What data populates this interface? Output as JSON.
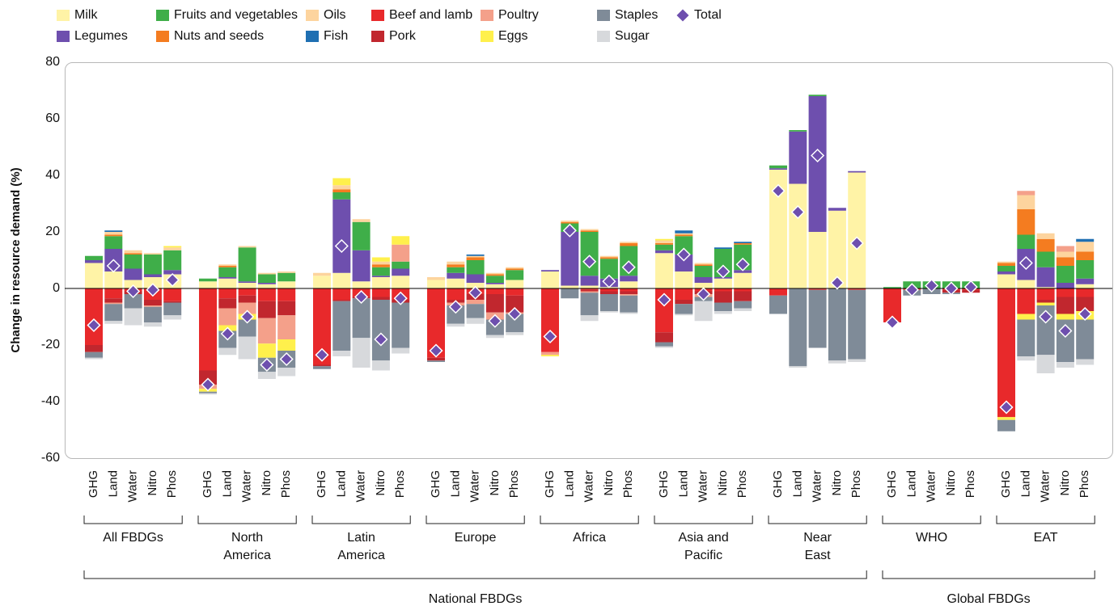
{
  "chart_data": {
    "type": "bar",
    "stacked": true,
    "y_label": "Change in resource demand (%)",
    "ylim": [
      -60,
      80
    ],
    "yticks": [
      -60,
      -40,
      -20,
      0,
      20,
      40,
      60,
      80
    ],
    "grid": false,
    "legend": "top",
    "categories": [
      "GHG",
      "Land",
      "Water",
      "Nitro",
      "Phos",
      "GHG",
      "Land",
      "Water",
      "Nitro",
      "Phos",
      "GHG",
      "Land",
      "Water",
      "Nitro",
      "Phos",
      "GHG",
      "Land",
      "Water",
      "Nitro",
      "Phos",
      "GHG",
      "Land",
      "Water",
      "Nitro",
      "Phos",
      "GHG",
      "Land",
      "Water",
      "Nitro",
      "Phos",
      "GHG",
      "Land",
      "Water",
      "Nitro",
      "Phos",
      "GHG",
      "Land",
      "Water",
      "Nitro",
      "Phos",
      "GHG",
      "Land",
      "Water",
      "Nitro",
      "Phos"
    ],
    "supergroups": [
      {
        "label": "National FBDGs",
        "groups": [
          [
            "All FBDGs"
          ],
          [
            "North",
            "America"
          ],
          [
            "Latin",
            "America"
          ],
          [
            "Europe"
          ],
          [
            "Africa"
          ],
          [
            "Asia and",
            "Pacific"
          ],
          [
            "Near",
            "East"
          ]
        ]
      },
      {
        "label": "Global FBDGs",
        "groups": [
          [
            "WHO"
          ],
          [
            "EAT"
          ]
        ]
      }
    ],
    "series": [
      {
        "name": "Milk",
        "color": "#fff3a6",
        "values": [
          9,
          6,
          3,
          4,
          5,
          2.5,
          3.5,
          2,
          1.5,
          2.5,
          4.5,
          5.5,
          2.5,
          4,
          4.5,
          3,
          3.5,
          2,
          1.5,
          3,
          6,
          1,
          1,
          0.5,
          2.5,
          12.5,
          6,
          2,
          3.5,
          5.5,
          42,
          37,
          20,
          27.5,
          41,
          0,
          0,
          0,
          0,
          0,
          5,
          3,
          0.5,
          0,
          1.5
        ]
      },
      {
        "name": "Legumes",
        "color": "#6e4fae",
        "values": [
          1,
          8,
          4,
          1,
          1.5,
          0,
          0.5,
          0.5,
          0.5,
          0,
          0,
          26,
          11,
          0.5,
          2.5,
          0,
          2,
          3,
          0.5,
          0,
          0.5,
          19,
          3.5,
          3,
          2,
          1,
          6,
          2,
          0.5,
          1,
          0.5,
          18.5,
          48,
          1,
          0.5,
          0,
          0,
          0,
          0,
          0,
          1,
          11,
          7,
          2,
          2
        ]
      },
      {
        "name": "Fruits and vegetables",
        "color": "#3fae49",
        "values": [
          1.5,
          4.5,
          5,
          7,
          7,
          1,
          3.5,
          12,
          3,
          3,
          0,
          2.5,
          10,
          3,
          2.5,
          0,
          2,
          5,
          2.5,
          3.5,
          0,
          3,
          15.5,
          7,
          10.5,
          2,
          6.5,
          4,
          10,
          9,
          1,
          0.5,
          0.5,
          0,
          0,
          0.5,
          2.5,
          2.5,
          2.5,
          2.5,
          2,
          5,
          5.5,
          6,
          6.5
        ]
      },
      {
        "name": "Nuts and seeds",
        "color": "#f47c20",
        "values": [
          0,
          0.5,
          0.5,
          0,
          0,
          0,
          0.5,
          0,
          0,
          0,
          0,
          1,
          0,
          1,
          0,
          0,
          1,
          1,
          0.5,
          0.5,
          0,
          0.5,
          0.5,
          0.5,
          1,
          0.5,
          0.5,
          0.5,
          0,
          0.5,
          0,
          0,
          0,
          0,
          0,
          0,
          0,
          0,
          0,
          0,
          1,
          9,
          4.5,
          3,
          3
        ]
      },
      {
        "name": "Oils",
        "color": "#fdd49e",
        "values": [
          0,
          1,
          1,
          0.5,
          1,
          0,
          0.5,
          0.5,
          0.5,
          0.5,
          1,
          1.5,
          1,
          1,
          0,
          1,
          1,
          0.5,
          0.5,
          0.5,
          0,
          0.5,
          0.5,
          0.5,
          0.5,
          1,
          0.5,
          0.5,
          0,
          0,
          0,
          0,
          0,
          0,
          0,
          0,
          0,
          0,
          0,
          0,
          0.5,
          5,
          2,
          2,
          3.5
        ]
      },
      {
        "name": "Fish",
        "color": "#1f6fb2",
        "values": [
          0,
          0.5,
          0,
          0,
          0,
          0,
          0,
          0,
          0,
          0,
          0,
          0,
          0,
          0,
          0,
          0,
          0,
          0.5,
          0,
          0,
          0,
          0,
          0,
          0,
          0,
          0,
          1,
          0,
          0.5,
          0.5,
          0,
          0,
          0,
          0,
          0,
          0,
          0,
          0,
          0,
          0,
          0,
          0,
          0,
          0,
          1
        ]
      },
      {
        "name": "Beef and lamb",
        "color": "#e8292b",
        "values": [
          -20,
          -3.5,
          -1,
          -4,
          -4.5,
          -29,
          -3.5,
          -2.5,
          -4.5,
          -4.5,
          -27,
          -4,
          -3,
          -3,
          -4,
          -24.5,
          -4,
          -2,
          -2,
          -2.5,
          -22.5,
          0,
          -0.5,
          -1,
          -1,
          -15.5,
          -4,
          -1,
          -1,
          -1,
          -2.5,
          0,
          -0.5,
          0,
          -0.5,
          -12,
          -0.5,
          0,
          -0.5,
          -0.5,
          -45.5,
          -9,
          -4,
          -3,
          -3
        ]
      },
      {
        "name": "Pork",
        "color": "#c1272e",
        "values": [
          -2.5,
          -1.5,
          -1,
          -2,
          -0.5,
          -5,
          -3.5,
          -2.5,
          -6,
          -5,
          -0.5,
          -0.5,
          -0.5,
          -1,
          -1,
          -1,
          -1,
          -2,
          -6.5,
          -6,
          0,
          0,
          -0.5,
          -1,
          -1,
          -3.5,
          -1.5,
          -1,
          -4,
          -3.5,
          0,
          0,
          0,
          0,
          0,
          0,
          0,
          0,
          -1,
          -1,
          0,
          0,
          -1,
          -6,
          -5
        ]
      },
      {
        "name": "Poultry",
        "color": "#f4a08a",
        "values": [
          0,
          -0.5,
          0,
          -0.5,
          0,
          -1.5,
          -6,
          -4,
          -9,
          -8.5,
          0,
          0,
          0,
          0,
          6,
          0,
          -1,
          -1.5,
          -2.5,
          -0.5,
          -1,
          0,
          -0.5,
          0,
          -0.5,
          0,
          0,
          -1,
          0,
          0,
          0,
          0,
          0,
          0,
          0,
          0,
          0,
          0,
          0,
          0,
          0,
          1.5,
          0,
          2,
          0
        ]
      },
      {
        "name": "Eggs",
        "color": "#fff04c",
        "values": [
          0,
          0,
          0,
          0,
          0.5,
          -1,
          -2,
          -2,
          -5,
          -4,
          0,
          2.5,
          0,
          1.5,
          3,
          0,
          0,
          0,
          0,
          0,
          -0.5,
          0,
          0,
          0,
          0,
          0.5,
          0,
          0,
          0,
          0,
          0,
          0,
          0,
          0,
          0,
          0,
          0,
          0,
          0,
          0,
          -1,
          -2,
          -1,
          -2,
          -3
        ]
      },
      {
        "name": "Staples",
        "color": "#7f8b98",
        "values": [
          -2,
          -6,
          -5,
          -5.5,
          -4.5,
          -0.5,
          -6,
          -6,
          -5,
          -6,
          -1,
          -17.5,
          -14,
          -21.5,
          -16,
          -0.5,
          -6.5,
          -5,
          -5.5,
          -6.5,
          0,
          -3.5,
          -8,
          -6,
          -6,
          -1.5,
          -3.5,
          -1.5,
          -3,
          -2.5,
          -6.5,
          -27.5,
          -20.5,
          -25.5,
          -24.5,
          0,
          -2,
          -2,
          -0.5,
          0,
          -4,
          -13,
          -17.5,
          -15,
          -14
        ]
      },
      {
        "name": "Sugar",
        "color": "#d7d9dc",
        "values": [
          -0.5,
          -1,
          -6,
          -1.5,
          -1.5,
          -0.5,
          -2.5,
          -8,
          -2.5,
          -3,
          0,
          -2,
          -10.5,
          -3.5,
          -2,
          0,
          -1,
          -2,
          -1,
          -1,
          0,
          0,
          -2,
          -0.5,
          -0.5,
          -0.5,
          -0.5,
          -7,
          -1,
          -1,
          0,
          -0.5,
          0,
          -1,
          -1,
          0,
          0,
          0,
          0,
          0,
          0,
          -1.5,
          -6.5,
          -2,
          -2
        ]
      }
    ],
    "total": {
      "name": "Total",
      "color": "#6e4fae",
      "values": [
        -13,
        8,
        -1,
        -0.5,
        3,
        -34,
        -16,
        -10,
        -27,
        -25,
        -23.5,
        15,
        -3,
        -18,
        -3.5,
        -22,
        -6.5,
        -1.5,
        -11.5,
        -9,
        -17,
        20.5,
        9.5,
        2.5,
        7.5,
        -4,
        12,
        -2,
        6,
        8.5,
        34.5,
        27,
        47,
        2,
        16,
        -12,
        -0.5,
        1,
        0,
        0.5,
        -42,
        9,
        -10,
        -15,
        -9
      ]
    }
  }
}
